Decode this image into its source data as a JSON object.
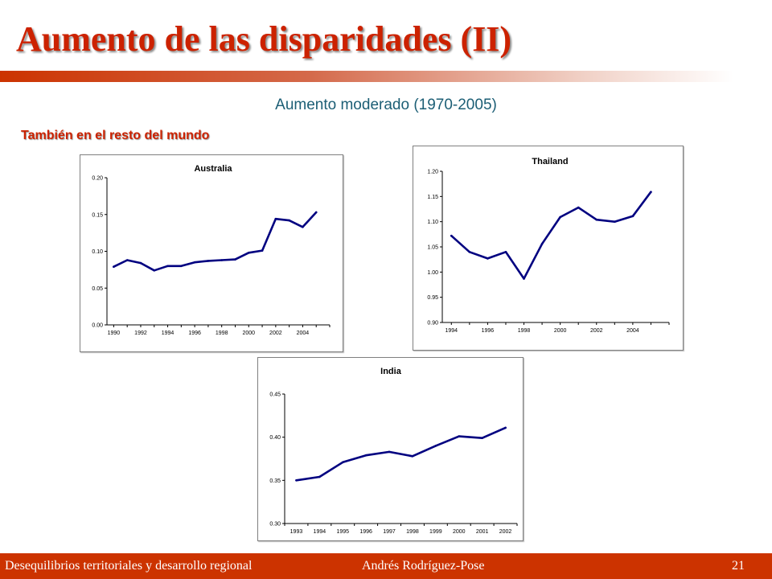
{
  "slide": {
    "title": "Aumento de las disparidades (II)",
    "subtitle": "Aumento moderado (1970-2005)",
    "section_label": "También en el resto del mundo"
  },
  "footer": {
    "left": "Desequilibrios territoriales y desarrollo regional",
    "center": "Andrés  Rodríguez-Pose",
    "page_number": "21"
  },
  "colors": {
    "title": "#cc2200",
    "footer_bg": "#cc3300",
    "subtitle": "#1c5e75",
    "series": "#000080"
  },
  "chart_data": [
    {
      "id": "australia",
      "type": "line",
      "title": "Australia",
      "xlabel": "",
      "ylabel": "",
      "xlim": [
        1989.5,
        2006
      ],
      "ylim": [
        0.0,
        0.2
      ],
      "x_ticks": [
        1990,
        1992,
        1994,
        1996,
        1998,
        2000,
        2002,
        2004
      ],
      "y_ticks": [
        "0.00",
        "0.05",
        "0.10",
        "0.15",
        "0.20"
      ],
      "x": [
        1990,
        1991,
        1992,
        1993,
        1994,
        1995,
        1996,
        1997,
        1998,
        1999,
        2000,
        2001,
        2002,
        2003,
        2004,
        2005
      ],
      "values": [
        0.079,
        0.088,
        0.084,
        0.074,
        0.08,
        0.08,
        0.085,
        0.087,
        0.088,
        0.089,
        0.098,
        0.101,
        0.144,
        0.142,
        0.133,
        0.153
      ],
      "grid": false,
      "legend": "none"
    },
    {
      "id": "thailand",
      "type": "line",
      "title": "Thailand",
      "xlabel": "",
      "ylabel": "",
      "xlim": [
        1993.5,
        2006
      ],
      "ylim": [
        0.9,
        1.2
      ],
      "x_ticks": [
        1994,
        1996,
        1998,
        2000,
        2002,
        2004
      ],
      "y_ticks": [
        "0.90",
        "0.95",
        "1.00",
        "1.05",
        "1.10",
        "1.15",
        "1.20"
      ],
      "x": [
        1994,
        1995,
        1996,
        1997,
        1998,
        1999,
        2000,
        2001,
        2002,
        2003,
        2004,
        2005
      ],
      "values": [
        1.072,
        1.04,
        1.027,
        1.04,
        0.987,
        1.056,
        1.109,
        1.128,
        1.104,
        1.1,
        1.111,
        1.159
      ],
      "grid": false,
      "legend": "none"
    },
    {
      "id": "india",
      "type": "line",
      "title": "India",
      "xlabel": "",
      "ylabel": "",
      "categories": [
        "1993",
        "1994",
        "1995",
        "1996",
        "1997",
        "1998",
        "1999",
        "2000",
        "2001",
        "2002"
      ],
      "ylim": [
        0.3,
        0.45
      ],
      "y_ticks": [
        "0.30",
        "0.35",
        "0.40",
        "0.45"
      ],
      "values": [
        0.35,
        0.354,
        0.371,
        0.379,
        0.383,
        0.378,
        0.39,
        0.401,
        0.399,
        0.411
      ],
      "grid": false,
      "legend": "none"
    }
  ]
}
